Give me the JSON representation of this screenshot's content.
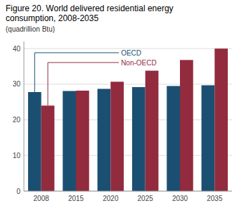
{
  "chart_data": {
    "type": "bar",
    "title": "Figure 20. World delivered residential energy consumption, 2008-2035",
    "subtitle": "(quadrillion Btu)",
    "categories": [
      "2008",
      "2015",
      "2020",
      "2025",
      "2030",
      "2035"
    ],
    "series": [
      {
        "name": "OECD",
        "color": "#1b4f72",
        "values": [
          27.8,
          28.1,
          28.7,
          29.2,
          29.5,
          29.7
        ]
      },
      {
        "name": "Non-OECD",
        "color": "#922b3e",
        "values": [
          24.0,
          28.2,
          30.7,
          33.8,
          36.8,
          40.0
        ]
      }
    ],
    "ylim": [
      0,
      42
    ],
    "yticks": [
      0,
      10,
      20,
      30,
      40
    ],
    "grid": true
  }
}
